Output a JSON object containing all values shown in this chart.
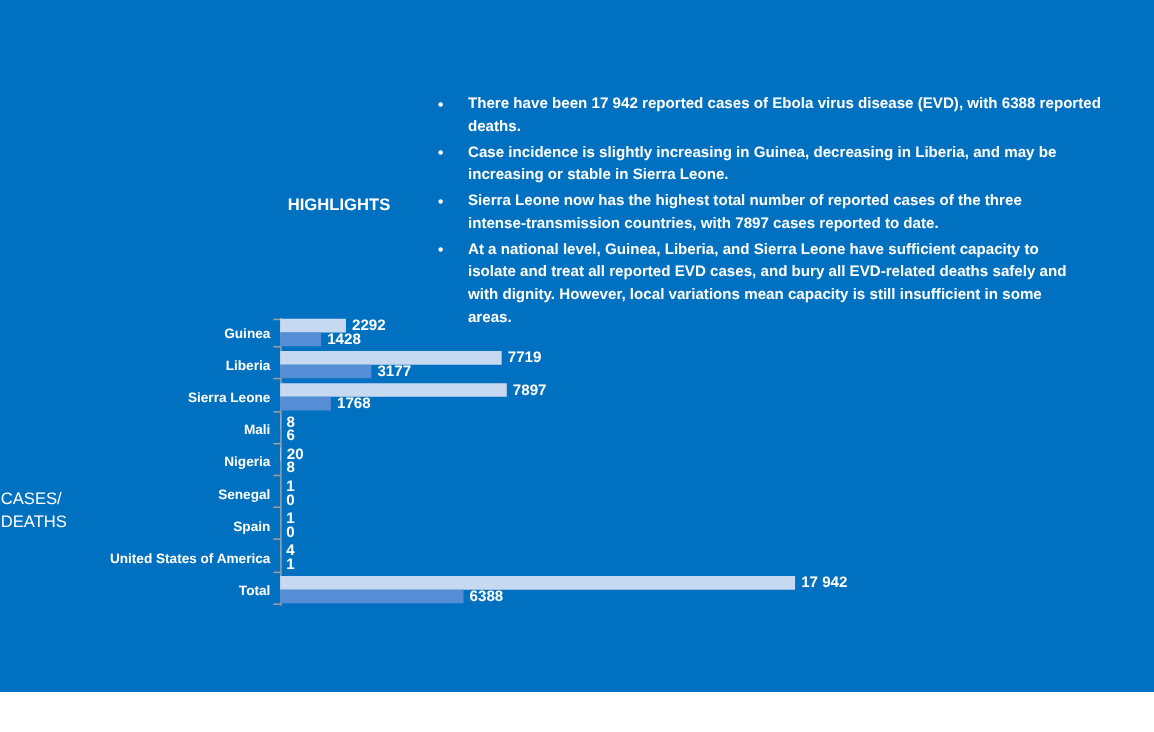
{
  "chart_data": {
    "type": "bar",
    "orientation": "horizontal",
    "ylabel": "CASES/ DEATHS",
    "annotations": [
      "HIGHLIGHTS",
      "• There have been 17 942 reported cases of Ebola virus disease (EVD), with 6388 reported deaths.",
      "• Case incidence is slightly increasing in Guinea, decreasing in Liberia, and may be increasing or stable in Sierra Leone.",
      "• Sierra Leone now has the highest total number of reported cases of the three intense-transmission countries, with 7897 cases reported to date.",
      "• At a national level, Guinea, Liberia, and Sierra Leone have sufficient capacity to isolate and treat all reported EVD cases, and bury all EVD-related deaths safely and with dignity. However, local variations mean capacity is still insufficient in some areas."
    ],
    "categories": [
      "Guinea",
      "Liberia",
      "Sierra Leone",
      "Mali",
      "Nigeria",
      "Senegal",
      "Spain",
      "United States of America",
      "Total"
    ],
    "series": [
      {
        "color": "#c6d9f1",
        "values": [
          2292,
          7719,
          7897,
          8,
          20,
          1,
          1,
          4,
          17942
        ],
        "value_labels": [
          "2292",
          "7719",
          "7897",
          "8",
          "20",
          "1",
          "1",
          "4",
          "17 942"
        ]
      },
      {
        "color": "#558ed5",
        "values": [
          1428,
          3177,
          1768,
          6,
          8,
          0,
          0,
          1,
          6388
        ],
        "value_labels": [
          "1428",
          "3177",
          "1768",
          "6",
          "8",
          "0",
          "0",
          "1",
          "6388"
        ]
      }
    ],
    "data_labels": true,
    "grid": false,
    "legend": false
  }
}
